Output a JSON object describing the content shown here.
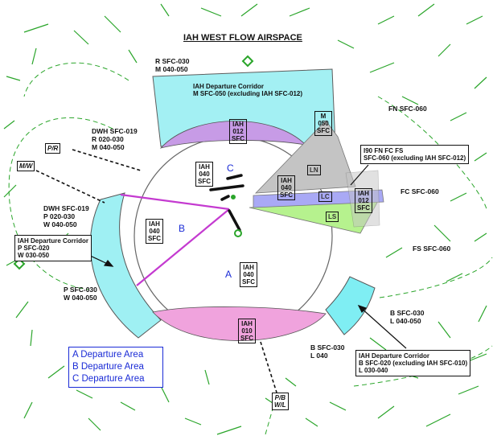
{
  "title": "IAH WEST FLOW AIRSPACE",
  "colors": {
    "corridor": "#9ff0f3",
    "purple": "#c79be6",
    "pink": "#f0a3dd",
    "blue": "#a9a9f5",
    "green": "#b6f28e",
    "gray": "#c4c4c4",
    "magenta": "#c43ad0",
    "area_text": "#1a2bd6",
    "routes": "#2aa52a"
  },
  "labels": {
    "r_sfc030": "R SFC-030",
    "m_040050": "M 040-050",
    "dwh1": "DWH SFC-019",
    "r_020030": "R 020-030",
    "m_040050b": "M 040-050",
    "dwh2": "DWH SFC-019",
    "p_020030": "P 020-030",
    "w_040050": "W 040-050",
    "p_sfc030": "P SFC-030",
    "w_040050b": "W 040-050",
    "fn_sfc060": "FN SFC-060",
    "fc_sfc060": "FC SFC-060",
    "fs_sfc060": "FS SFC-060",
    "b_sfc030": "B SFC-030",
    "l_040050": "L 040-050",
    "b_sfc030b": "B SFC-030",
    "l_040": "L 040"
  },
  "notes": {
    "corridor_m_1": "IAH Departure Corridor",
    "corridor_m_2": "M SFC-050 (excluding IAH SFC-012)",
    "corridor_p_1": "IAH Departure Corridor",
    "corridor_p_2": "P SFC-020",
    "corridor_p_3": "W 030-050",
    "corridor_b_1": "IAH Departure Corridor",
    "corridor_b_2": "B SFC-020 (excluding IAH SFC-010)",
    "corridor_b_3": "L 030-040",
    "i90_1": "I90 FN FC FS",
    "i90_2": "SFC-060 (excluding IAH SFC-012)"
  },
  "boxes": {
    "iah012": [
      "IAH",
      "012",
      "SFC"
    ],
    "iah040n": [
      "IAH",
      "040",
      "SFC"
    ],
    "iah040ne": [
      "IAH",
      "040",
      "SFC"
    ],
    "iah040w": [
      "IAH",
      "040",
      "SFC"
    ],
    "iah040s": [
      "IAH",
      "040",
      "SFC"
    ],
    "iah010": [
      "IAH",
      "010",
      "SFC"
    ],
    "m050": [
      "M",
      "050",
      "SFC"
    ],
    "iah012e": [
      "IAH",
      "012",
      "SFC"
    ],
    "ln": "LN",
    "lc": "LC",
    "ls": "LS",
    "pr": "P/R",
    "mw": "M/W",
    "pb": "P/B",
    "wl": "W/L"
  },
  "areas": {
    "a": "A",
    "b": "B",
    "c": "C"
  },
  "legend": [
    "A  Departure Area",
    "B  Departure Area",
    "C  Departure Area"
  ]
}
